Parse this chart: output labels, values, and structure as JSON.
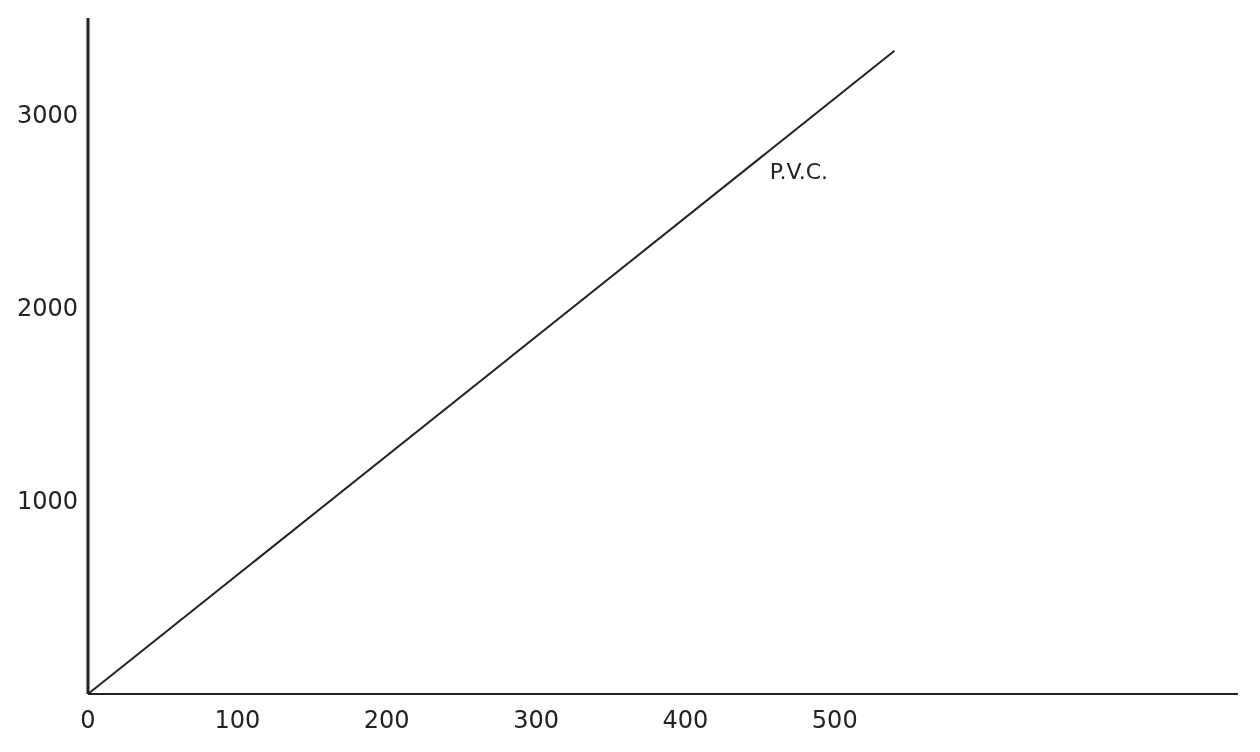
{
  "chart_data": {
    "type": "line",
    "x": [
      0,
      540
    ],
    "series": [
      {
        "name": "P.V.C.",
        "color": "#222222",
        "values": [
          0,
          3330
        ]
      }
    ],
    "xlim": [
      0,
      770
    ],
    "ylim": [
      0,
      3500
    ],
    "xticks": [
      0,
      100,
      200,
      300,
      400,
      500
    ],
    "yticks": [
      1000,
      2000,
      3000
    ],
    "grid": false,
    "legend": false,
    "marker": "none",
    "line_style": "solid"
  }
}
